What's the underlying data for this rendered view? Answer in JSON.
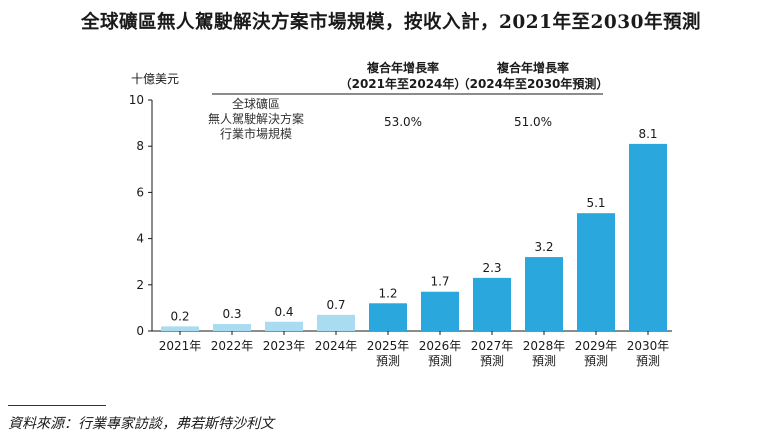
{
  "title": "全球礦區無人駕駛解決方案市場規模，按收入計，2021年至2030年預測",
  "unit_label": "十億美元",
  "source": "資料來源：行業專家訪談，弗若斯特沙利文",
  "colors": {
    "historical": "#a9dcf0",
    "forecast": "#2aa7dd",
    "axis": "#1a1a1a"
  },
  "chart_data": {
    "type": "bar",
    "title": "全球礦區無人駕駛解決方案市場規模，按收入計，2021年至2030年預測",
    "ylabel": "十億美元",
    "ylim": [
      0,
      10
    ],
    "yticks": [
      0,
      2,
      4,
      6,
      8,
      10
    ],
    "categories": [
      [
        "2021年"
      ],
      [
        "2022年"
      ],
      [
        "2023年"
      ],
      [
        "2024年"
      ],
      [
        "2025年",
        "預測"
      ],
      [
        "2026年",
        "預測"
      ],
      [
        "2027年",
        "預測"
      ],
      [
        "2028年",
        "預測"
      ],
      [
        "2029年",
        "預測"
      ],
      [
        "2030年",
        "預測"
      ]
    ],
    "values": [
      0.2,
      0.3,
      0.4,
      0.7,
      1.2,
      1.7,
      2.3,
      3.2,
      5.1,
      8.1
    ],
    "value_labels": [
      "0.2",
      "0.3",
      "0.4",
      "0.7",
      "1.2",
      "1.7",
      "2.3",
      "3.2",
      "5.1",
      "8.1"
    ],
    "forecast_flags": [
      false,
      false,
      false,
      false,
      true,
      true,
      true,
      true,
      true,
      true
    ],
    "legend_label_lines": [
      "全球礦區",
      "無人駕駛解決方案",
      "行業市場規模"
    ],
    "cagr": [
      {
        "header": "複合年增長率",
        "period": "（2021年至2024年）",
        "value": "53.0%"
      },
      {
        "header": "複合年增長率",
        "period": "（2024年至2030年預測）",
        "value": "51.0%"
      }
    ],
    "grid": false
  }
}
